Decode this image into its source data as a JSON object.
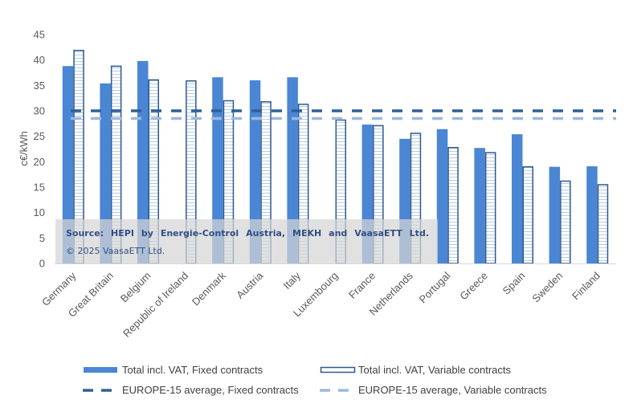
{
  "chart_data": {
    "type": "bar",
    "title": "",
    "xlabel": "",
    "ylabel": "c€/kWh",
    "ylim": [
      0,
      45
    ],
    "yticks": [
      0,
      5,
      10,
      15,
      20,
      25,
      30,
      35,
      40,
      45
    ],
    "grid": false,
    "categories": [
      "Germany",
      "Great Britain",
      "Belgium",
      "Republic of Ireland",
      "Denmark",
      "Austria",
      "Italy",
      "Luxembourg",
      "France",
      "Netherlands",
      "Portugal",
      "Greece",
      "Spain",
      "Sweden",
      "Finland"
    ],
    "series": [
      {
        "name": "Total incl. VAT, Fixed contracts",
        "style": "solid",
        "color": "#4a86d4",
        "values": [
          38.8,
          35.4,
          39.8,
          null,
          36.6,
          36.0,
          36.6,
          null,
          27.3,
          24.5,
          26.4,
          22.7,
          25.4,
          19.0,
          19.1
        ]
      },
      {
        "name": "Total incl. VAT, Variable contracts",
        "style": "hatched-outline",
        "color": "#2e5a8e",
        "values": [
          42.0,
          38.9,
          36.2,
          36.0,
          32.1,
          31.9,
          31.4,
          28.3,
          27.2,
          25.7,
          22.9,
          21.9,
          19.1,
          16.3,
          15.6
        ]
      }
    ],
    "reference_lines": [
      {
        "name": "EUROPE-15 average, Fixed contracts",
        "value": 30.0,
        "color": "#2e5f99",
        "style": "dashed"
      },
      {
        "name": "EUROPE-15 average, Variable contracts",
        "value": 28.5,
        "color": "#9db8dd",
        "style": "dashed"
      }
    ],
    "legend_position": "bottom",
    "annotation": {
      "source": [
        "Source:",
        "HEPI",
        "by",
        "Energie-Control",
        "Austria,",
        "MEKH",
        "and",
        "VaasaETT",
        "Ltd."
      ],
      "copyright": "© 2025 VaasaETT Ltd."
    }
  }
}
